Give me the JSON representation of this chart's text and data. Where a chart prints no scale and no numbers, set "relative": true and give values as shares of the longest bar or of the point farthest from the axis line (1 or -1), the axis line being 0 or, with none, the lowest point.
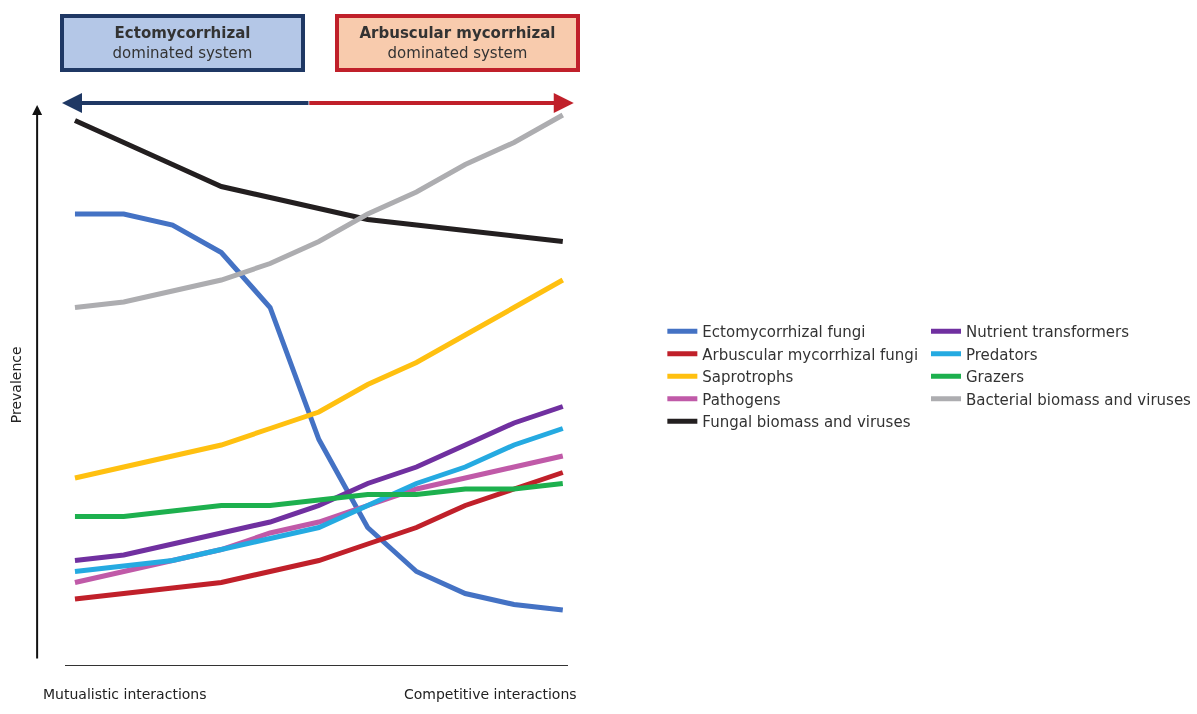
{
  "chart_data": {
    "type": "line",
    "relative": true,
    "legend": "right",
    "marker": "none",
    "line_style": "solid",
    "ylabel": "Prevalence",
    "annotations": [
      "Ectomycorrhizal\ndominated system",
      "Arbuscular mycorrhizal\ndominated system",
      "Mutualistic interactions",
      "Competitive interactions"
    ],
    "categories": [
      null,
      null,
      null,
      null,
      null,
      null,
      null,
      null,
      null,
      null,
      null
    ],
    "series": [
      {
        "name": "Ectomycorrhizal fungi",
        "color": "#4472c4",
        "values": [
          0.82,
          0.82,
          0.8,
          0.75,
          0.65,
          0.41,
          0.25,
          0.17,
          0.13,
          0.11,
          0.1
        ]
      },
      {
        "name": "Arbuscular mycorrhizal fungi",
        "color": "#c0202a",
        "values": [
          0.12,
          0.13,
          0.14,
          0.15,
          0.17,
          0.19,
          0.22,
          0.25,
          0.29,
          0.32,
          0.35
        ]
      },
      {
        "name": "Saprotrophs",
        "color": "#ffc010",
        "values": [
          0.34,
          0.36,
          0.38,
          0.4,
          0.43,
          0.46,
          0.51,
          0.55,
          0.6,
          0.65,
          0.7
        ]
      },
      {
        "name": "Pathogens",
        "color": "#c05aa8",
        "values": [
          0.15,
          0.17,
          0.19,
          0.21,
          0.24,
          0.26,
          0.29,
          0.32,
          0.34,
          0.36,
          0.38
        ]
      },
      {
        "name": "Fungal biomass and viruses",
        "color": "#231f20",
        "values": [
          0.99,
          0.95,
          0.91,
          0.87,
          0.85,
          0.83,
          0.81,
          0.8,
          0.79,
          0.78,
          0.77
        ]
      },
      {
        "name": "Nutrient transformers",
        "color": "#7030a0",
        "values": [
          0.19,
          0.2,
          0.22,
          0.24,
          0.26,
          0.29,
          0.33,
          0.36,
          0.4,
          0.44,
          0.47
        ]
      },
      {
        "name": "Predators",
        "color": "#25aae1",
        "values": [
          0.17,
          0.18,
          0.19,
          0.21,
          0.23,
          0.25,
          0.29,
          0.33,
          0.36,
          0.4,
          0.43
        ]
      },
      {
        "name": "Grazers",
        "color": "#1db04e",
        "values": [
          0.27,
          0.27,
          0.28,
          0.29,
          0.29,
          0.3,
          0.31,
          0.31,
          0.32,
          0.32,
          0.33
        ]
      },
      {
        "name": "Bacterial biomass and viruses",
        "color": "#adadb0",
        "values": [
          0.65,
          0.66,
          0.68,
          0.7,
          0.73,
          0.77,
          0.82,
          0.86,
          0.91,
          0.95,
          1.0
        ]
      }
    ]
  }
}
